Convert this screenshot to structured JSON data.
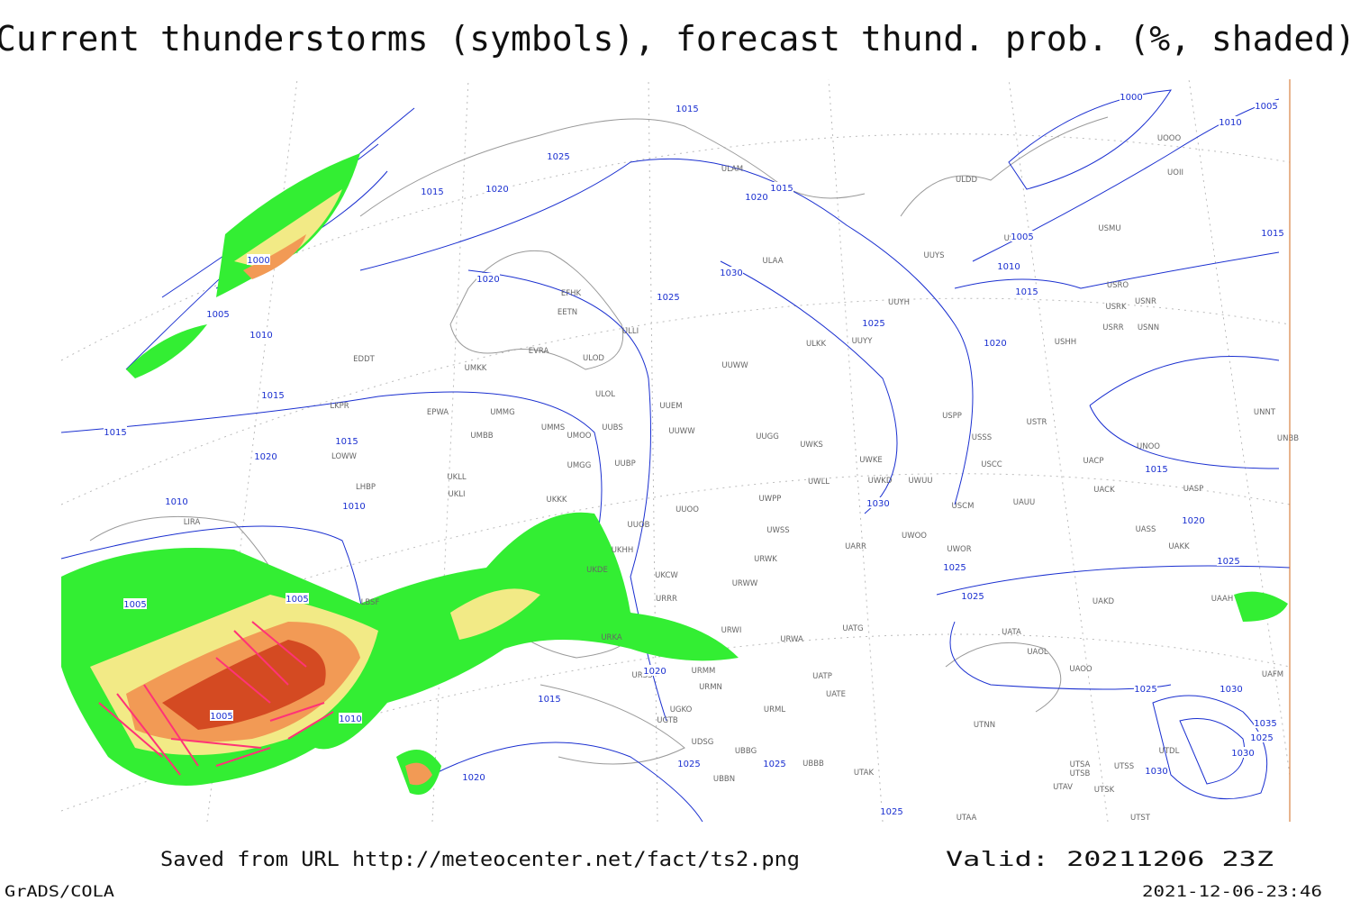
{
  "header": {
    "title": "Current thunderstorms (symbols), forecast thund. prob. (%, shaded)"
  },
  "map": {
    "isobar_labels": [
      1015,
      1025,
      1015,
      1020,
      1020,
      1015,
      1000,
      1005,
      1010,
      1000,
      1005,
      1010,
      1020,
      1025,
      1030,
      1025,
      1020,
      1015,
      1010,
      1005,
      1015,
      1015,
      1015,
      1015,
      1020,
      1010,
      1010,
      1005,
      1005,
      1005,
      1010,
      1015,
      1020,
      1020,
      1025,
      1025,
      1030,
      1025,
      1015,
      1020,
      1025,
      1025,
      1025,
      1030,
      1035,
      1025,
      1030,
      1030,
      1025
    ],
    "station_labels": [
      "ULDD",
      "UOOO",
      "UOII",
      "USDD",
      "USMU",
      "ULAM",
      "ULAA",
      "UUYS",
      "USRO",
      "USRK",
      "USNR",
      "USRR",
      "USNN",
      "UUYH",
      "EFHK",
      "EETN",
      "ULLI",
      "ULKK",
      "UUYY",
      "USHH",
      "EVRA",
      "ULOD",
      "UUWW",
      "EDDT",
      "UMKK",
      "ULOL",
      "UUEM",
      "EPWA",
      "UMMG",
      "LKPR",
      "UMMS",
      "UUBS",
      "UUWW",
      "UMOO",
      "USPP",
      "USTR",
      "USSS",
      "UMBB",
      "UUGG",
      "UWKS",
      "UWKE",
      "UNOO",
      "UNNT",
      "UNBB",
      "LOWW",
      "UKLL",
      "UMGG",
      "UUBP",
      "USCC",
      "UACP",
      "UWLL",
      "UWKD",
      "UWUU",
      "UACK",
      "UASP",
      "LHBP",
      "UKLI",
      "UKKK",
      "UWPP",
      "UUOO",
      "USCM",
      "UAUU",
      "LIRA",
      "UUOB",
      "UWSS",
      "UASS",
      "UAKK",
      "UKHH",
      "UARR",
      "UWOO",
      "UWOR",
      "UKDE",
      "URWK",
      "UKCW",
      "URWW",
      "URRR",
      "UAKD",
      "UAAH",
      "LBSF",
      "UATG",
      "URWI",
      "URKA",
      "URWA",
      "UATA",
      "UAOL",
      "UAOO",
      "UATP",
      "URMM",
      "URSS",
      "UATE",
      "URMN",
      "URML",
      "UGKO",
      "UGTB",
      "UDSG",
      "UBBG",
      "UBBB",
      "UTAK",
      "UTNN",
      "UTDL",
      "UTSA",
      "UTSS",
      "UTSB",
      "UTAV",
      "UTSK",
      "UTAA",
      "UTST",
      "UBBN",
      "UAFM"
    ]
  },
  "footer": {
    "source": "Saved from URL http://meteocenter.net/fact/ts2.png",
    "valid": "Valid: 20211206 23Z",
    "software": "GrADS/COLA",
    "timestamp": "2021-12-06-23:46"
  }
}
